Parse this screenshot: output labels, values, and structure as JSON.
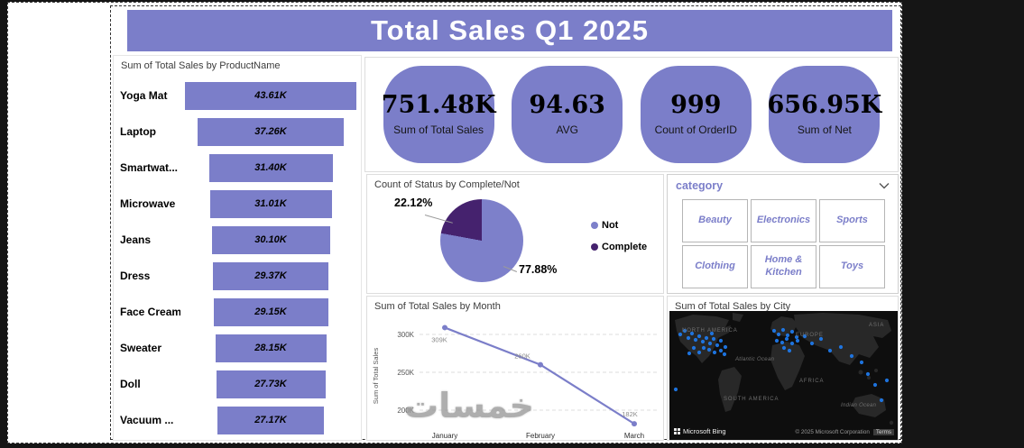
{
  "header": {
    "title": "Total Sales Q1 2025"
  },
  "slicer": {
    "title": "category",
    "options": [
      "Beauty",
      "Electronics",
      "Sports",
      "Clothing",
      "Home & Kitchen",
      "Toys"
    ]
  },
  "watermark": {
    "text": "خمسات"
  },
  "colors": {
    "accent": "#7b7ec9",
    "pie_light": "#7d80ca",
    "pie_dark": "#45226e",
    "dot_blue": "#1f78e8"
  },
  "chart_data": [
    {
      "id": "product-funnel",
      "type": "bar",
      "subtype": "funnel-centered-horizontal",
      "title": "Sum of Total Sales by ProductName",
      "categories": [
        "Yoga Mat",
        "Laptop",
        "Smartwat...",
        "Microwave",
        "Jeans",
        "Dress",
        "Face Cream",
        "Sweater",
        "Doll",
        "Vacuum ..."
      ],
      "values": [
        43.61,
        37.26,
        31.4,
        31.01,
        30.1,
        29.37,
        29.15,
        28.15,
        27.73,
        27.17
      ],
      "value_labels": [
        "43.61K",
        "37.26K",
        "31.40K",
        "31.01K",
        "30.10K",
        "29.37K",
        "29.15K",
        "28.15K",
        "27.73K",
        "27.17K"
      ],
      "unit": "K"
    },
    {
      "id": "kpi-cards",
      "type": "table",
      "cards": [
        {
          "value": "751.48K",
          "label": "Sum of Total Sales"
        },
        {
          "value": "94.63",
          "label": "AVG"
        },
        {
          "value": "999",
          "label": "Count of OrderID"
        },
        {
          "value": "656.95K",
          "label": "Sum of Net"
        }
      ]
    },
    {
      "id": "status-pie",
      "type": "pie",
      "title": "Count of Status by Complete/Not",
      "labels": [
        "Not",
        "Complete"
      ],
      "values": [
        77.88,
        22.12
      ],
      "value_labels": [
        "77.88%",
        "22.12%"
      ],
      "colors": [
        "#7d80ca",
        "#45226e"
      ],
      "legend_position": "right"
    },
    {
      "id": "monthly-line",
      "type": "line",
      "title": "Sum of Total Sales by Month",
      "ylabel": "Sum of Total Sales",
      "x": [
        "January",
        "February",
        "March"
      ],
      "values": [
        309,
        260,
        182
      ],
      "value_labels": [
        "309K",
        "260K",
        "182K"
      ],
      "yticks": [
        300,
        250,
        200
      ],
      "ytick_labels": [
        "300K",
        "250K",
        "200K"
      ],
      "ylim": [
        170,
        320
      ],
      "grid": true
    },
    {
      "id": "city-map",
      "type": "scatter",
      "subtype": "map",
      "title": "Sum of Total Sales by City",
      "region_labels": [
        "NORTH AMERICA",
        "EUROPE",
        "ASIA",
        "Atlantic Ocean",
        "AFRICA",
        "SOUTH AMERICA",
        "Indian Ocean"
      ],
      "attribution": {
        "logo": "Microsoft Bing",
        "copyright": "© 2025 Microsoft Corporation",
        "terms": "Terms"
      }
    }
  ]
}
